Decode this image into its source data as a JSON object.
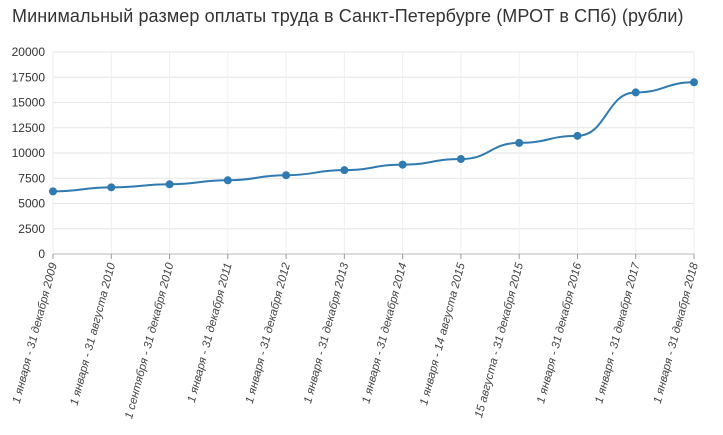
{
  "chart_data": {
    "type": "line",
    "title": "Минимальный размер оплаты труда в Санкт-Петербурге (МРОТ в СПб) (рубли)",
    "xlabel": "",
    "ylabel": "",
    "ylim": [
      0,
      20000
    ],
    "yticks": [
      0,
      2500,
      5000,
      7500,
      10000,
      12500,
      15000,
      17500,
      20000
    ],
    "grid": true,
    "categories": [
      "1 января - 31 декабря 2009",
      "1 января - 31 августа 2010",
      "1 сентября - 31 декабря 2010",
      "1 января - 31 декабря 2011",
      "1 января - 31 декабря 2012",
      "1 января - 31 декабря 2013",
      "1 января - 31 декабря 2014",
      "1 января - 14 августа 2015",
      "15 августа - 31 декабря 2015",
      "1 января - 31 декабря 2016",
      "1 января - 31 декабря 2017",
      "1 января - 31 декабря 2018"
    ],
    "series": [
      {
        "values": [
          6200,
          6600,
          6900,
          7300,
          7800,
          8300,
          8850,
          9400,
          11000,
          11700,
          16000,
          17000
        ]
      }
    ],
    "color": "#2f7ab0"
  }
}
